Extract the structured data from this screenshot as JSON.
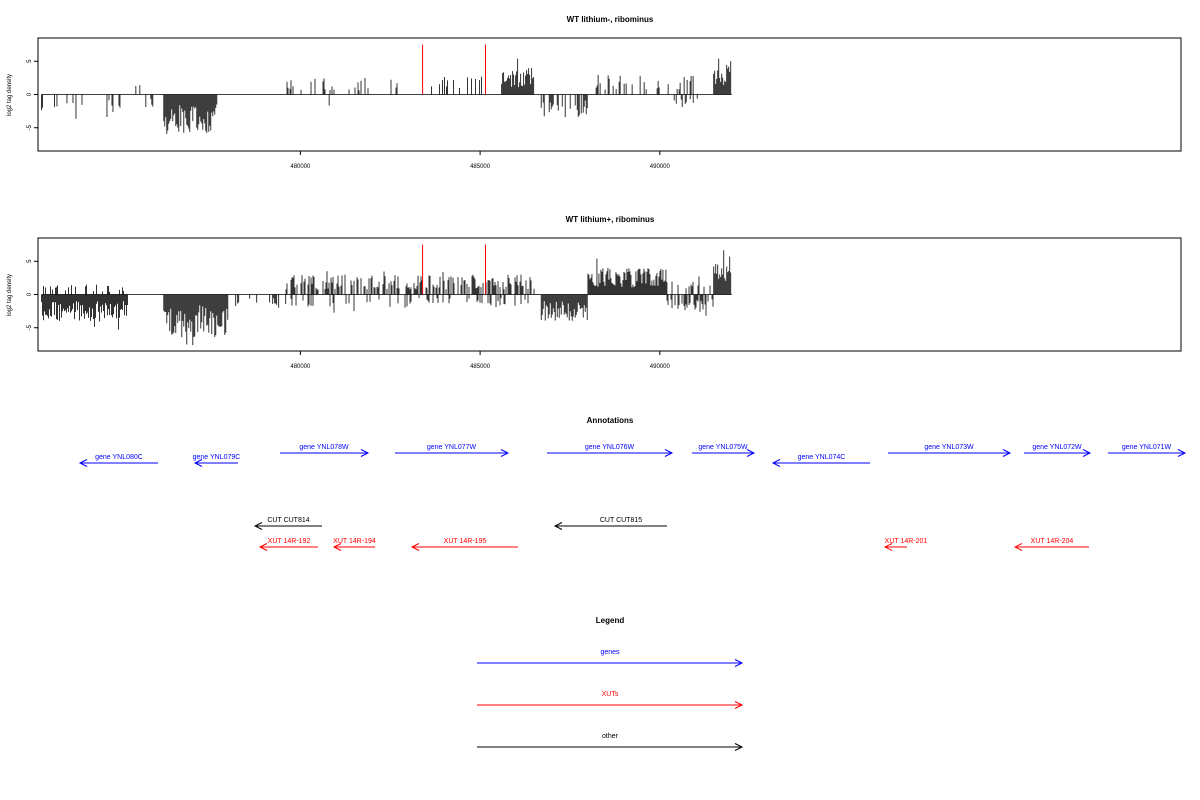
{
  "chart_data": [
    {
      "type": "bar",
      "title": "WT lithium-, ribominus",
      "ylabel": "log2 tag density",
      "xlabel": "",
      "xlim": [
        472700,
        504500
      ],
      "ylim": [
        -8.5,
        8.5
      ],
      "yticks": [
        -5,
        0,
        5
      ],
      "xticks": [
        480000,
        485000,
        490000
      ],
      "markers": [
        483400,
        485150
      ],
      "regions": [
        {
          "from": 472800,
          "to": 473200,
          "sign": -1,
          "amp": 2.5,
          "density": "sparse"
        },
        {
          "from": 473200,
          "to": 475000,
          "sign": -1,
          "amp": 2.8,
          "density": "sparse"
        },
        {
          "from": 475200,
          "to": 475700,
          "sign": 1,
          "amp": 1.5,
          "density": "sparse"
        },
        {
          "from": 475700,
          "to": 476200,
          "sign": -1,
          "amp": 2.0,
          "density": "sparse"
        },
        {
          "from": 476200,
          "to": 477700,
          "sign": -1,
          "amp": 6.0,
          "density": "dense"
        },
        {
          "from": 479600,
          "to": 482800,
          "sign": 1,
          "amp": 2.5,
          "density": "sparse"
        },
        {
          "from": 480800,
          "to": 480900,
          "sign": -1,
          "amp": 2.5,
          "density": "sparse"
        },
        {
          "from": 482800,
          "to": 483000,
          "sign": -1,
          "amp": 2.5,
          "density": "sparse"
        },
        {
          "from": 483400,
          "to": 485200,
          "sign": 1,
          "amp": 3.0,
          "density": "sparse"
        },
        {
          "from": 485600,
          "to": 486500,
          "sign": 1,
          "amp": 4.0,
          "density": "dense"
        },
        {
          "from": 486700,
          "to": 488000,
          "sign": -1,
          "amp": 3.5,
          "density": "medium"
        },
        {
          "from": 488200,
          "to": 491200,
          "sign": 1,
          "amp": 3.0,
          "density": "sparse"
        },
        {
          "from": 490400,
          "to": 491400,
          "sign": -1,
          "amp": 2.0,
          "density": "sparse"
        },
        {
          "from": 491500,
          "to": 492000,
          "sign": 1,
          "amp": 4.5,
          "density": "dense"
        }
      ]
    },
    {
      "type": "bar",
      "title": "WT lithium+, ribominus",
      "ylabel": "log2 tag density",
      "xlabel": "",
      "xlim": [
        472700,
        504500
      ],
      "ylim": [
        -8.5,
        8.5
      ],
      "yticks": [
        -5,
        0,
        5
      ],
      "xticks": [
        480000,
        485000,
        490000
      ],
      "markers": [
        483400,
        485150
      ],
      "regions": [
        {
          "from": 472800,
          "to": 475200,
          "sign": -1,
          "amp": 4.0,
          "density": "dense"
        },
        {
          "from": 472800,
          "to": 475200,
          "sign": 1,
          "amp": 1.5,
          "density": "sparse"
        },
        {
          "from": 476200,
          "to": 478000,
          "sign": -1,
          "amp": 6.5,
          "density": "dense"
        },
        {
          "from": 478200,
          "to": 479600,
          "sign": -1,
          "amp": 2.0,
          "density": "sparse"
        },
        {
          "from": 479600,
          "to": 486500,
          "sign": 1,
          "amp": 3.0,
          "density": "medium"
        },
        {
          "from": 479600,
          "to": 486500,
          "sign": -1,
          "amp": 2.0,
          "density": "sparse"
        },
        {
          "from": 486700,
          "to": 488000,
          "sign": -1,
          "amp": 4.0,
          "density": "dense"
        },
        {
          "from": 488000,
          "to": 490200,
          "sign": 1,
          "amp": 4.0,
          "density": "dense"
        },
        {
          "from": 490200,
          "to": 491500,
          "sign": -1,
          "amp": 2.5,
          "density": "medium"
        },
        {
          "from": 490200,
          "to": 491500,
          "sign": 1,
          "amp": 2.0,
          "density": "sparse"
        },
        {
          "from": 491500,
          "to": 492000,
          "sign": 1,
          "amp": 6.0,
          "density": "dense"
        }
      ]
    }
  ],
  "annotations": {
    "title": "Annotations",
    "genes": [
      {
        "label": "gene YNL080C",
        "strand": "-"
      },
      {
        "label": "gene YNL079C",
        "strand": "-"
      },
      {
        "label": "gene YNL078W",
        "strand": "+"
      },
      {
        "label": "gene YNL077W",
        "strand": "+"
      },
      {
        "label": "gene YNL076W",
        "strand": "+"
      },
      {
        "label": "gene YNL075W",
        "strand": "+"
      },
      {
        "label": "gene YNL074C",
        "strand": "-"
      },
      {
        "label": "gene YNL073W",
        "strand": "+"
      },
      {
        "label": "gene YNL072W",
        "strand": "+"
      },
      {
        "label": "gene YNL071W",
        "strand": "+"
      }
    ],
    "other": [
      {
        "label": "CUT CUT814",
        "strand": "-"
      },
      {
        "label": "CUT CUT815",
        "strand": "-"
      }
    ],
    "xuts": [
      {
        "label": "XUT 14R-192",
        "strand": "-"
      },
      {
        "label": "XUT 14R-194",
        "strand": "-"
      },
      {
        "label": "XUT 14R-195",
        "strand": "-"
      },
      {
        "label": "XUT 14R-201",
        "strand": "-"
      },
      {
        "label": "XUT 14R-204",
        "strand": "-"
      }
    ]
  },
  "legend": {
    "title": "Legend",
    "items": [
      {
        "label": "genes",
        "color": "#0000ff"
      },
      {
        "label": "XUTs",
        "color": "#ff0000"
      },
      {
        "label": "other",
        "color": "#000000"
      }
    ]
  },
  "colors": {
    "gene": "#0000ff",
    "xut": "#ff0000",
    "other": "#000000",
    "marker": "#ff0000",
    "bars": "#000000"
  }
}
